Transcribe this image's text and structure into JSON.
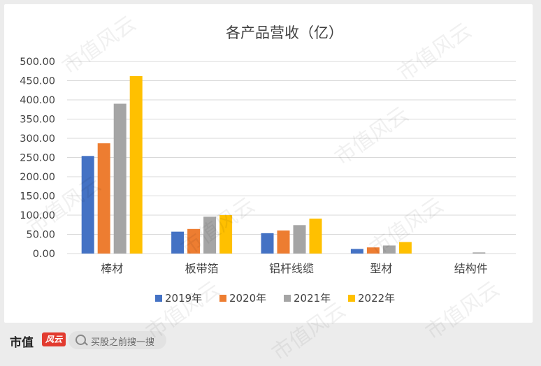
{
  "chart_data": {
    "type": "bar",
    "title": "各产品营收（亿）",
    "categories": [
      "棒材",
      "板带箔",
      "铝杆线缆",
      "型材",
      "结构件"
    ],
    "series": [
      {
        "name": "2019年",
        "color": "#4472c4",
        "values": [
          254,
          57,
          53,
          12,
          0
        ]
      },
      {
        "name": "2020年",
        "color": "#ed7d31",
        "values": [
          287,
          64,
          60,
          16,
          0
        ]
      },
      {
        "name": "2021年",
        "color": "#a5a5a5",
        "values": [
          390,
          96,
          74,
          21,
          3
        ]
      },
      {
        "name": "2022年",
        "color": "#ffc000",
        "values": [
          462,
          100,
          91,
          30,
          0
        ]
      }
    ],
    "ylim": [
      0,
      500
    ],
    "yticks": [
      "0.00",
      "50.00",
      "100.00",
      "150.00",
      "200.00",
      "250.00",
      "300.00",
      "350.00",
      "400.00",
      "450.00",
      "500.00"
    ],
    "grid": true,
    "legend": "bottom"
  },
  "watermark": "市值风云",
  "footer": {
    "brand": "市值",
    "badge": "风云",
    "search_placeholder": "买股之前搜一搜"
  }
}
